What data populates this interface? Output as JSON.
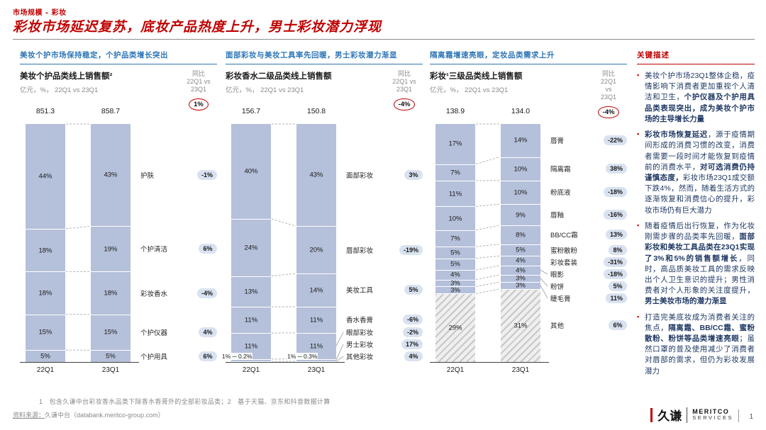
{
  "page": {
    "eyebrow": "市场规模 - 彩妆",
    "title": "彩妆市场延迟复苏，底妆产品热度上升，男士彩妆潜力浮现",
    "footnote": "1　包含久谦中台彩妆香水品类下除香水香膏外的全部彩妆品类；2　基于天猫、京东和抖音数据计算",
    "source_label": "资料来源：",
    "source_value": "久谦中台（databank.meritco-group.com）",
    "page_number": "1",
    "logo": {
      "cn": "久谦",
      "en_line1": "MERITCO",
      "en_line2": "SERVICES"
    }
  },
  "colors": {
    "accent_red": "#C00000",
    "header_blue": "#2E75B6",
    "bar_fill": "#B5C0DA",
    "pill_bg": "#D9E2F0",
    "text_navy": "#1F3864",
    "gray_text": "#8A8A8A"
  },
  "chart_data": [
    {
      "type": "bar",
      "stacked": true,
      "section_header": "美妆个护市场保持稳定，个护品类增长突出",
      "title": "美妆个护品类线上销售额²",
      "subtitle": "亿元，%， 22Q1 vs 23Q1",
      "yoy_header": [
        "同比",
        "22Q1 vs",
        "23Q1"
      ],
      "total_yoy": "1%",
      "categories": [
        "22Q1",
        "23Q1"
      ],
      "totals": [
        "851.3",
        "858.7"
      ],
      "ylim": [
        0,
        100
      ],
      "series": [
        {
          "name": "护肤",
          "values": [
            44,
            43
          ],
          "yoy": "-1%"
        },
        {
          "name": "个护清洁",
          "values": [
            18,
            19
          ],
          "yoy": "6%"
        },
        {
          "name": "彩妆香水",
          "values": [
            18,
            18
          ],
          "yoy": "-4%"
        },
        {
          "name": "个护仪器",
          "values": [
            15,
            15
          ],
          "yoy": "4%"
        },
        {
          "name": "个护用具",
          "values": [
            5,
            5
          ],
          "yoy": "6%"
        }
      ]
    },
    {
      "type": "bar",
      "stacked": true,
      "section_header": "面部彩妆与美妆工具率先回暖，男士彩妆潜力渐显",
      "title": "彩妆香水二级品类线上销售额",
      "subtitle": "亿元，%， 22Q1 vs 23Q1",
      "yoy_header": [
        "同比",
        "22Q1 vs",
        "23Q1"
      ],
      "total_yoy": "-4%",
      "categories": [
        "22Q1",
        "23Q1"
      ],
      "totals": [
        "156.7",
        "150.8"
      ],
      "ylim": [
        0,
        100
      ],
      "series": [
        {
          "name": "面部彩妆",
          "values": [
            40,
            43
          ],
          "yoy": "3%"
        },
        {
          "name": "唇部彩妆",
          "values": [
            24,
            20
          ],
          "yoy": "-19%"
        },
        {
          "name": "美妆工具",
          "values": [
            13,
            14
          ],
          "yoy": "5%"
        },
        {
          "name": "香水香膏",
          "values": [
            11,
            11
          ],
          "yoy": "-6%"
        },
        {
          "name": "眼部彩妆",
          "values": [
            11,
            11
          ],
          "yoy": "-2%"
        },
        {
          "name": "男士彩妆",
          "values": [
            1,
            1
          ],
          "yoy": "17%"
        },
        {
          "name": "其他彩妆",
          "values": [
            0.2,
            0.3
          ],
          "yoy": "4%"
        }
      ],
      "bottom_annotations": [
        "1% ─ 0.2%",
        "1% ─ 0.3%"
      ]
    },
    {
      "type": "bar",
      "stacked": true,
      "section_header": "隔离霜增速亮眼，定妆品类需求上升",
      "title": "彩妆¹三级品类线上销售额",
      "subtitle": "亿元，%， 22Q1 vs 23Q1",
      "yoy_header": [
        "同比",
        "22Q1",
        "vs",
        "23Q1"
      ],
      "total_yoy": "-4%",
      "categories": [
        "22Q1",
        "23Q1"
      ],
      "totals": [
        "138.9",
        "134.0"
      ],
      "ylim": [
        0,
        100
      ],
      "series": [
        {
          "name": "唇膏",
          "values": [
            17,
            14
          ],
          "yoy": "-22%"
        },
        {
          "name": "隔离霜",
          "values": [
            7,
            10
          ],
          "yoy": "38%"
        },
        {
          "name": "粉底液",
          "values": [
            11,
            10
          ],
          "yoy": "-18%"
        },
        {
          "name": "唇釉",
          "values": [
            10,
            9
          ],
          "yoy": "-16%"
        },
        {
          "name": "BB/CC霜",
          "values": [
            7,
            8
          ],
          "yoy": "13%"
        },
        {
          "name": "蜜粉散粉",
          "values": [
            5,
            5
          ],
          "yoy": "8%"
        },
        {
          "name": "彩妆套装",
          "values": [
            5,
            4
          ],
          "yoy": "-31%"
        },
        {
          "name": "眼影",
          "values": [
            4,
            4
          ],
          "yoy": "-18%"
        },
        {
          "name": "粉饼",
          "values": [
            3,
            3
          ],
          "yoy": "5%"
        },
        {
          "name": "睫毛膏",
          "values": [
            3,
            3
          ],
          "yoy": "11%"
        },
        {
          "name": "其他",
          "values": [
            29,
            31
          ],
          "yoy": "6%",
          "hatched": true
        }
      ]
    }
  ],
  "key_points": {
    "title": "关键描述",
    "bullets": [
      [
        {
          "t": "美妆个护市场23Q1整体企稳，疫情影响下消费者更加重视个人清洁和卫生，",
          "b": false
        },
        {
          "t": "个护仪器及个护用具品类表现突出，成为美妆个护市场的主导增长力量",
          "b": true
        }
      ],
      [
        {
          "t": "彩妆市场恢复延迟",
          "b": true
        },
        {
          "t": "，源于疫情期间形成的消费习惯的改变，消费者需要一段时间才能恢复到疫情前的消费水平，",
          "b": false
        },
        {
          "t": "对可选消费仍持谨慎态度，",
          "b": true
        },
        {
          "t": "彩妆市场23Q1成交额下跌4%，然而，随着生活方式的逐渐恢复和消费信心的提升，彩妆市场仍有巨大潜力",
          "b": false
        }
      ],
      [
        {
          "t": "随着疫情后出行恢复，作为化妆刚需步骤的品类率先回暖，",
          "b": false
        },
        {
          "t": "面部彩妆和美妆工具品类在23Q1实现了3%和5%的销售额增长",
          "b": true
        },
        {
          "t": "，同时，高品质美妆工具的需求反映出个人卫生意识的提升；男性消费者对个人形象的关注度提升，",
          "b": false
        },
        {
          "t": "男士美妆市场的潜力渐显",
          "b": true
        }
      ],
      [
        {
          "t": "打造完美底妆成为消费者关注的焦点，",
          "b": false
        },
        {
          "t": "隔离霜、BB/CC霜、蜜粉散粉、粉饼等品类增速亮眼",
          "b": true
        },
        {
          "t": "；虽然口罩的普及使用减少了消费者对唇部的需求，但仍为彩妆发展潜力",
          "b": false
        }
      ]
    ]
  }
}
